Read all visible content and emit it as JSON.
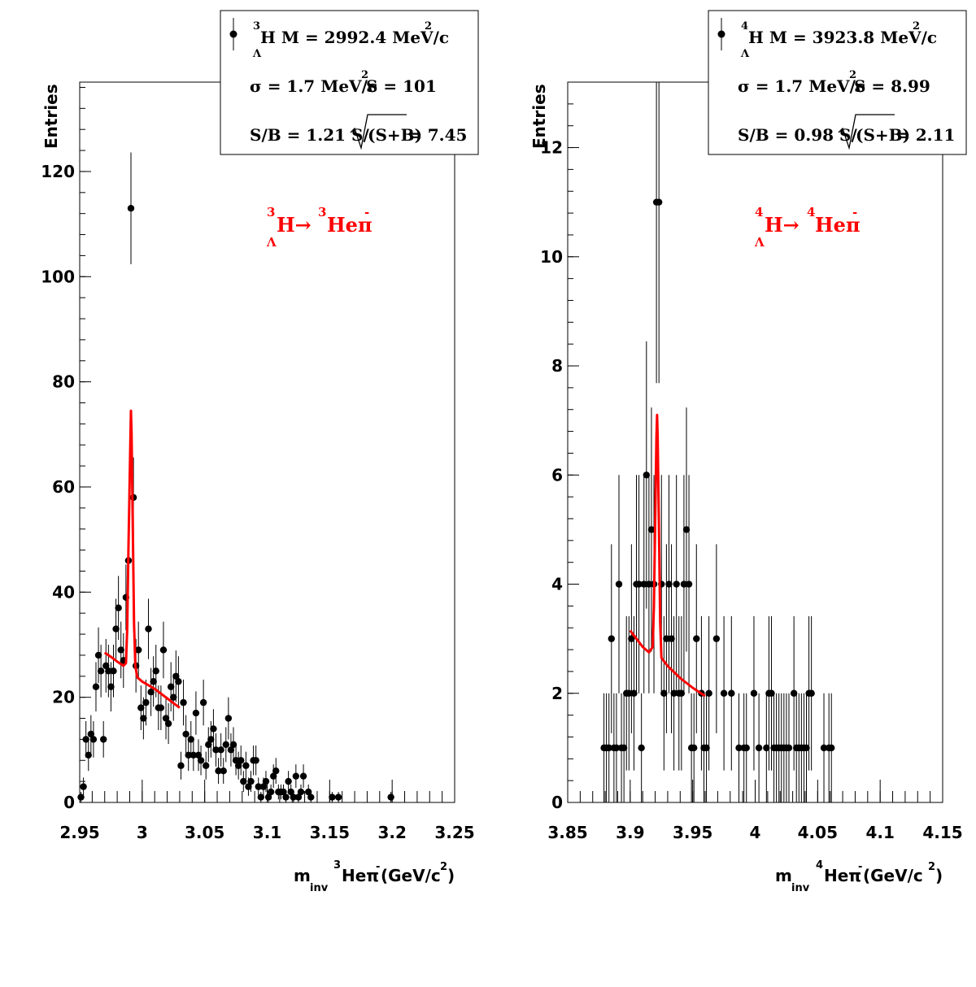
{
  "chart_data": [
    {
      "type": "scatter",
      "ylabel": "Entries",
      "xlabel": {
        "prefix": "m",
        "sub": "inv",
        "iso": "3",
        "nucleus": "Heπ",
        "charge": "-",
        "unit_open": "(GeV/c",
        "unit_exp": "2",
        "unit_close": ")"
      },
      "xlim": [
        2.95,
        3.25
      ],
      "ylim": [
        0,
        137
      ],
      "x_ticks": [
        "2.95",
        "3",
        "3.05",
        "3.1",
        "3.15",
        "3.2",
        "3.25"
      ],
      "x_tick_values": [
        2.95,
        3.0,
        3.05,
        3.1,
        3.15,
        3.2,
        3.25
      ],
      "y_ticks": [
        "0",
        "20",
        "40",
        "60",
        "80",
        "100",
        "120"
      ],
      "y_tick_values": [
        0,
        20,
        40,
        60,
        80,
        100,
        120
      ],
      "legend": {
        "line1": {
          "iso": "3",
          "sub": "Λ",
          "text": "H M = 2992.4 MeV/c",
          "exp": "2"
        },
        "line2": {
          "text_a": "σ = 1.7 MeV/c",
          "exp": "2",
          "text_b": " S =  101"
        },
        "line3": {
          "text_a": "S/B = 1.21  S/",
          "radicand": "(S+B)",
          "text_b": " = 7.45"
        }
      },
      "annotation": {
        "iso_a": "3",
        "sub": "Λ",
        "text_a": "H→",
        "iso_b": "3",
        "text_b": "Heπ",
        "charge": "-"
      },
      "marker_color": "#000000",
      "fit_color": "#ff0000",
      "points": [
        [
          2.951,
          1
        ],
        [
          2.953,
          3
        ],
        [
          2.955,
          12
        ],
        [
          2.957,
          9
        ],
        [
          2.959,
          13
        ],
        [
          2.961,
          12
        ],
        [
          2.963,
          22
        ],
        [
          2.965,
          28
        ],
        [
          2.967,
          25
        ],
        [
          2.969,
          12
        ],
        [
          2.971,
          26
        ],
        [
          2.973,
          25
        ],
        [
          2.975,
          22
        ],
        [
          2.977,
          25
        ],
        [
          2.979,
          33
        ],
        [
          2.981,
          37
        ],
        [
          2.983,
          29
        ],
        [
          2.985,
          27
        ],
        [
          2.987,
          39
        ],
        [
          2.989,
          46
        ],
        [
          2.991,
          113
        ],
        [
          2.993,
          58
        ],
        [
          2.995,
          26
        ],
        [
          2.997,
          29
        ],
        [
          2.999,
          18
        ],
        [
          3.001,
          16
        ],
        [
          3.003,
          19
        ],
        [
          3.005,
          33
        ],
        [
          3.007,
          21
        ],
        [
          3.009,
          23
        ],
        [
          3.011,
          25
        ],
        [
          3.013,
          18
        ],
        [
          3.015,
          18
        ],
        [
          3.017,
          29
        ],
        [
          3.019,
          16
        ],
        [
          3.021,
          15
        ],
        [
          3.023,
          22
        ],
        [
          3.025,
          20
        ],
        [
          3.027,
          24
        ],
        [
          3.029,
          23
        ],
        [
          3.031,
          7
        ],
        [
          3.033,
          19
        ],
        [
          3.035,
          13
        ],
        [
          3.037,
          9
        ],
        [
          3.039,
          12
        ],
        [
          3.041,
          9
        ],
        [
          3.043,
          17
        ],
        [
          3.045,
          9
        ],
        [
          3.047,
          8
        ],
        [
          3.049,
          19
        ],
        [
          3.051,
          7
        ],
        [
          3.053,
          11
        ],
        [
          3.055,
          12
        ],
        [
          3.057,
          14
        ],
        [
          3.059,
          10
        ],
        [
          3.061,
          6
        ],
        [
          3.063,
          10
        ],
        [
          3.065,
          6
        ],
        [
          3.067,
          11
        ],
        [
          3.069,
          16
        ],
        [
          3.071,
          10
        ],
        [
          3.073,
          11
        ],
        [
          3.075,
          8
        ],
        [
          3.077,
          7
        ],
        [
          3.079,
          8
        ],
        [
          3.081,
          4
        ],
        [
          3.083,
          7
        ],
        [
          3.085,
          3
        ],
        [
          3.087,
          4
        ],
        [
          3.089,
          8
        ],
        [
          3.091,
          8
        ],
        [
          3.093,
          3
        ],
        [
          3.095,
          1
        ],
        [
          3.097,
          3
        ],
        [
          3.099,
          4
        ],
        [
          3.101,
          1
        ],
        [
          3.103,
          2
        ],
        [
          3.105,
          5
        ],
        [
          3.107,
          6
        ],
        [
          3.109,
          2
        ],
        [
          3.111,
          2
        ],
        [
          3.113,
          2
        ],
        [
          3.115,
          1
        ],
        [
          3.117,
          4
        ],
        [
          3.119,
          2
        ],
        [
          3.121,
          1
        ],
        [
          3.123,
          5
        ],
        [
          3.125,
          1
        ],
        [
          3.127,
          2
        ],
        [
          3.129,
          5
        ],
        [
          3.133,
          2
        ],
        [
          3.135,
          1
        ],
        [
          3.152,
          1
        ],
        [
          3.157,
          1
        ],
        [
          3.199,
          1
        ]
      ],
      "fit_curve": [
        [
          2.97,
          28.5
        ],
        [
          2.975,
          27.7
        ],
        [
          2.98,
          26.8
        ],
        [
          2.985,
          26.0
        ],
        [
          2.987,
          26.5
        ],
        [
          2.988,
          33
        ],
        [
          2.989,
          48
        ],
        [
          2.9905,
          68
        ],
        [
          2.991,
          74.5
        ],
        [
          2.9915,
          70
        ],
        [
          2.9925,
          52
        ],
        [
          2.9935,
          34
        ],
        [
          2.9945,
          26
        ],
        [
          2.996,
          23.8
        ],
        [
          3.0,
          23.0
        ],
        [
          3.01,
          21.6
        ],
        [
          3.02,
          19.8
        ],
        [
          3.03,
          18.0
        ]
      ]
    },
    {
      "type": "scatter",
      "ylabel": "Entries",
      "xlabel": {
        "prefix": "m",
        "sub": "inv",
        "iso": "4",
        "nucleus": "Heπ",
        "charge": "-",
        "unit_open": " (GeV/c",
        "unit_exp": "2",
        "unit_close": ")"
      },
      "xlim": [
        3.85,
        4.15
      ],
      "ylim": [
        0,
        13.2
      ],
      "x_ticks": [
        "3.85",
        "3.9",
        "3.95",
        "4",
        "4.05",
        "4.1",
        "4.15"
      ],
      "x_tick_values": [
        3.85,
        3.9,
        3.95,
        4.0,
        4.05,
        4.1,
        4.15
      ],
      "y_ticks": [
        "0",
        "2",
        "4",
        "6",
        "8",
        "10",
        "12"
      ],
      "y_tick_values": [
        0,
        2,
        4,
        6,
        8,
        10,
        12
      ],
      "legend": {
        "line1": {
          "iso": "4",
          "sub": "Λ",
          "text": "H M = 3923.8 MeV/c",
          "exp": "2"
        },
        "line2": {
          "text_a": "σ = 1.7 MeV/c",
          "exp": "2",
          "text_b": " S = 8.99"
        },
        "line3": {
          "text_a": "S/B = 0.98  S/",
          "radicand": "(S+B)",
          "text_b": " = 2.11"
        }
      },
      "annotation": {
        "iso_a": "4",
        "sub": "Λ",
        "text_a": "H→",
        "iso_b": "4",
        "text_b": "Heπ",
        "charge": "-"
      },
      "marker_color": "#000000",
      "fit_color": "#ff0000",
      "points": [
        [
          3.879,
          1
        ],
        [
          3.881,
          1
        ],
        [
          3.883,
          1
        ],
        [
          3.885,
          3
        ],
        [
          3.887,
          1
        ],
        [
          3.889,
          1
        ],
        [
          3.891,
          4
        ],
        [
          3.893,
          1
        ],
        [
          3.895,
          1
        ],
        [
          3.897,
          2
        ],
        [
          3.899,
          2
        ],
        [
          3.901,
          3
        ],
        [
          3.903,
          2
        ],
        [
          3.905,
          4
        ],
        [
          3.907,
          4
        ],
        [
          3.909,
          1
        ],
        [
          3.911,
          4
        ],
        [
          3.913,
          6
        ],
        [
          3.915,
          4
        ],
        [
          3.917,
          5
        ],
        [
          3.919,
          4
        ],
        [
          3.921,
          11
        ],
        [
          3.923,
          11
        ],
        [
          3.925,
          4
        ],
        [
          3.927,
          2
        ],
        [
          3.929,
          3
        ],
        [
          3.931,
          4
        ],
        [
          3.933,
          3
        ],
        [
          3.935,
          2
        ],
        [
          3.937,
          4
        ],
        [
          3.939,
          2
        ],
        [
          3.941,
          2
        ],
        [
          3.943,
          4
        ],
        [
          3.945,
          5
        ],
        [
          3.947,
          4
        ],
        [
          3.949,
          1
        ],
        [
          3.951,
          1
        ],
        [
          3.953,
          3
        ],
        [
          3.957,
          2
        ],
        [
          3.959,
          1
        ],
        [
          3.961,
          1
        ],
        [
          3.963,
          2
        ],
        [
          3.969,
          3
        ],
        [
          3.975,
          2
        ],
        [
          3.981,
          2
        ],
        [
          3.987,
          1
        ],
        [
          3.991,
          1
        ],
        [
          3.993,
          1
        ],
        [
          3.999,
          2
        ],
        [
          4.003,
          1
        ],
        [
          4.009,
          1
        ],
        [
          4.011,
          2
        ],
        [
          4.013,
          2
        ],
        [
          4.015,
          1
        ],
        [
          4.017,
          1
        ],
        [
          4.019,
          1
        ],
        [
          4.021,
          1
        ],
        [
          4.023,
          1
        ],
        [
          4.025,
          1
        ],
        [
          4.027,
          1
        ],
        [
          4.031,
          2
        ],
        [
          4.033,
          1
        ],
        [
          4.035,
          1
        ],
        [
          4.037,
          1
        ],
        [
          4.039,
          1
        ],
        [
          4.041,
          1
        ],
        [
          4.043,
          2
        ],
        [
          4.045,
          2
        ],
        [
          4.055,
          1
        ],
        [
          4.059,
          1
        ],
        [
          4.061,
          1
        ]
      ],
      "fit_curve": [
        [
          3.9,
          3.15
        ],
        [
          3.905,
          3.0
        ],
        [
          3.91,
          2.85
        ],
        [
          3.915,
          2.75
        ],
        [
          3.918,
          2.85
        ],
        [
          3.919,
          3.6
        ],
        [
          3.92,
          5.2
        ],
        [
          3.921,
          6.7
        ],
        [
          3.9215,
          7.1
        ],
        [
          3.922,
          6.7
        ],
        [
          3.923,
          5.0
        ],
        [
          3.924,
          3.3
        ],
        [
          3.925,
          2.65
        ],
        [
          3.93,
          2.5
        ],
        [
          3.94,
          2.28
        ],
        [
          3.95,
          2.1
        ],
        [
          3.96,
          1.95
        ]
      ]
    }
  ]
}
